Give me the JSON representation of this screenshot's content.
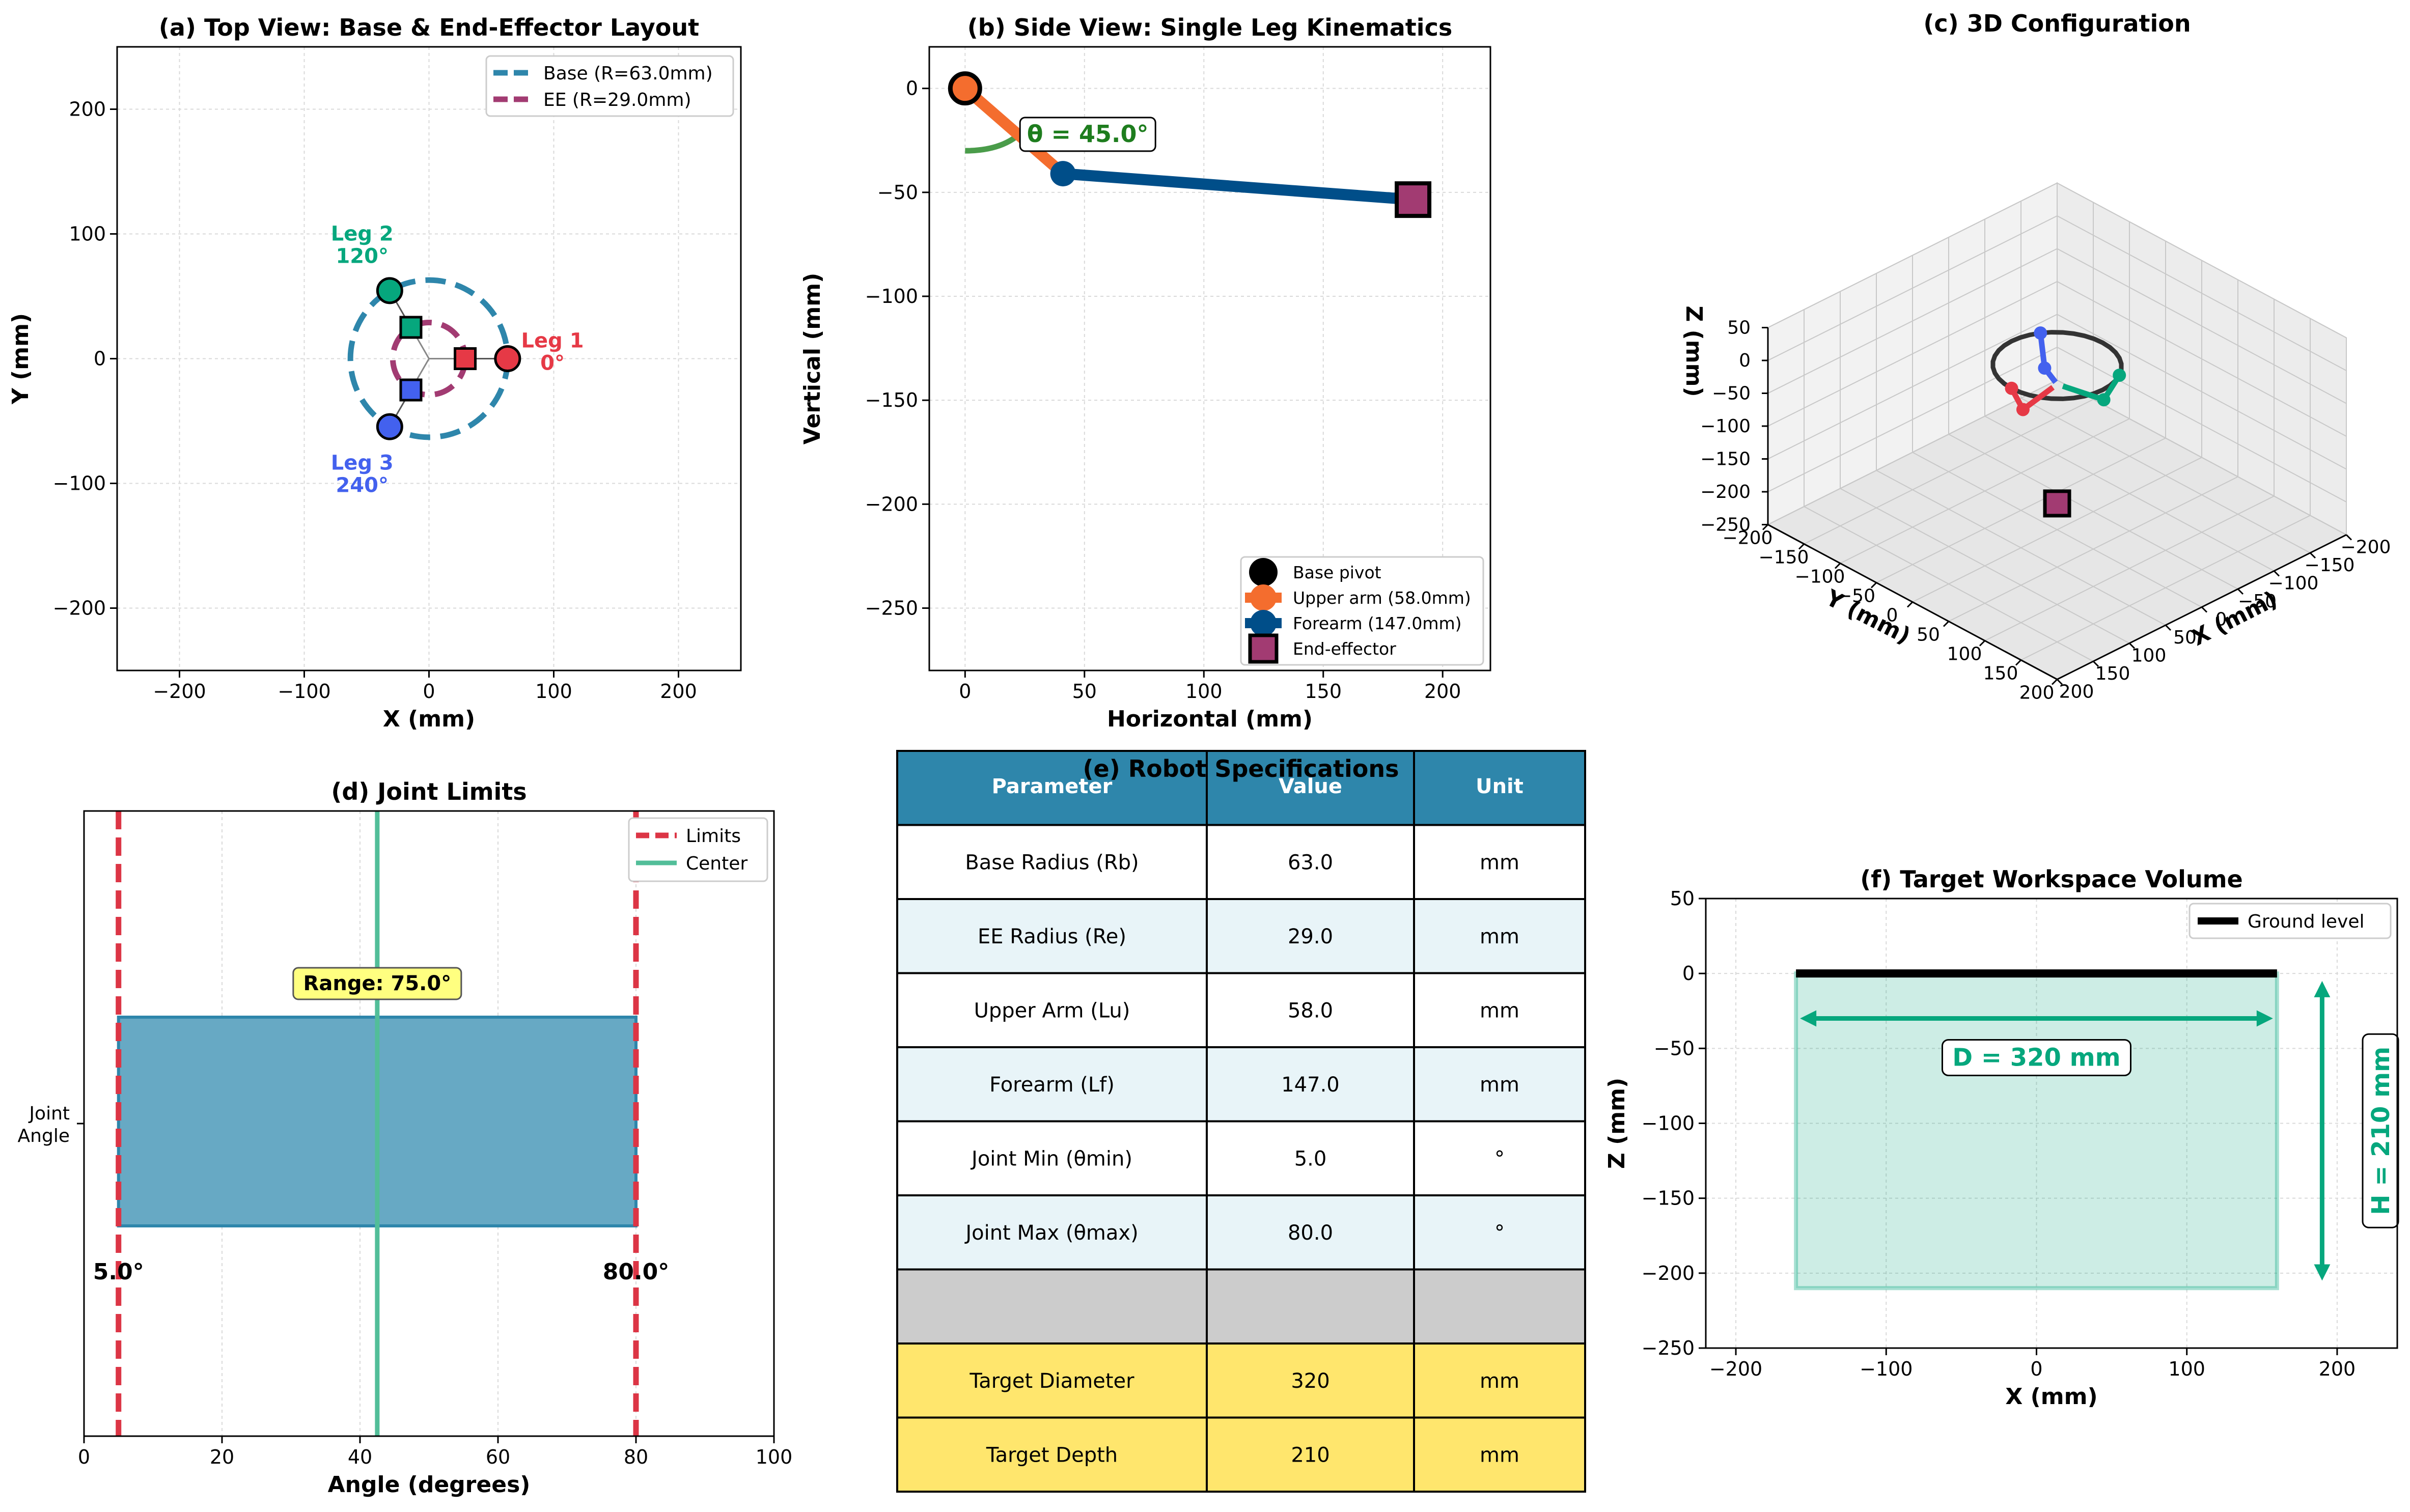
{
  "colors": {
    "base_blue": "#2e86ab",
    "ee_purple": "#a23b72",
    "leg1": "#e63946",
    "leg2": "#06a77d",
    "leg3": "#4361ee",
    "upper_arm": "#f46d2e",
    "forearm": "#004e89",
    "limit_red": "#dc3545",
    "center_green": "#52be99",
    "range_fill": "#67a9c4",
    "target_green": "#06a77d",
    "table_header": "#2e86ab",
    "table_alt": "#e8f4f8",
    "table_gray": "#cccccc",
    "table_yellow": "#ffe66d",
    "label_box": "#ffff80"
  },
  "chart_data": [
    {
      "id": "a",
      "type": "scatter",
      "title": "(a) Top View: Base & End-Effector Layout",
      "xlabel": "X (mm)",
      "ylabel": "Y (mm)",
      "xlim": [
        -250,
        250
      ],
      "ylim": [
        -250,
        250
      ],
      "xticks": [
        -200,
        -100,
        0,
        100,
        200
      ],
      "yticks": [
        -200,
        -100,
        0,
        100,
        200
      ],
      "grid": true,
      "legend": [
        {
          "label": "Base (R=63.0mm)",
          "color": "#2e86ab"
        },
        {
          "label": "EE (R=29.0mm)",
          "color": "#a23b72"
        }
      ],
      "legend_position": "upper right",
      "base_radius": 63.0,
      "ee_radius": 29.0,
      "legs": [
        {
          "label_line1": "Leg 1",
          "label_line2": "0°",
          "angle": 0,
          "color": "#e63946"
        },
        {
          "label_line1": "Leg 2",
          "label_line2": "120°",
          "angle": 120,
          "color": "#06a77d"
        },
        {
          "label_line1": "Leg 3",
          "label_line2": "240°",
          "angle": 240,
          "color": "#4361ee"
        }
      ]
    },
    {
      "id": "b",
      "type": "line",
      "title": "(b) Side View: Single Leg Kinematics",
      "xlabel": "Horizontal (mm)",
      "ylabel": "Vertical (mm)",
      "xlim": [
        -15,
        220
      ],
      "ylim": [
        -280,
        20
      ],
      "xticks": [
        0,
        50,
        100,
        150,
        200
      ],
      "yticks": [
        0,
        -50,
        -100,
        -150,
        -200,
        -250
      ],
      "grid": true,
      "base_pivot": [
        0,
        0
      ],
      "elbow": [
        41.0,
        -41.0
      ],
      "end_effector": [
        187.6,
        -53.5
      ],
      "theta_label": "θ = 45.0°",
      "legend": [
        {
          "label": "Base pivot",
          "color": "#000000"
        },
        {
          "label": "Upper arm (58.0mm)",
          "color": "#f46d2e"
        },
        {
          "label": "Forearm (147.0mm)",
          "color": "#004e89"
        },
        {
          "label": "End-effector",
          "color": "#a23b72"
        }
      ],
      "legend_position": "lower right"
    },
    {
      "id": "c",
      "type": "scatter",
      "title": "(c) 3D Configuration",
      "xlabel": "X (mm)",
      "ylabel": "Y (mm)",
      "zlabel": "Z (mm)",
      "xticks": [
        -200,
        -150,
        -100,
        -50,
        0,
        50,
        100,
        150,
        200
      ],
      "yticks": [
        -200,
        -150,
        -100,
        -50,
        0,
        50,
        100,
        150,
        200
      ],
      "zticks": [
        50,
        0,
        -50,
        -100,
        -150,
        -200,
        -250
      ],
      "xlim": [
        -200,
        200
      ],
      "ylim": [
        -200,
        200
      ],
      "zlim": [
        -250,
        50
      ]
    },
    {
      "id": "d",
      "type": "bar",
      "title": "(d) Joint Limits",
      "xlabel": "Angle (degrees)",
      "ylabel_tick_line1": "Joint",
      "ylabel_tick_line2": "Angle",
      "xlim": [
        0,
        100
      ],
      "xticks": [
        0,
        20,
        40,
        60,
        80,
        100
      ],
      "grid": true,
      "min": 5.0,
      "max": 80.0,
      "center": 42.5,
      "min_label": "5.0°",
      "max_label": "80.0°",
      "range_label": "Range: 75.0°",
      "legend": [
        {
          "label": "Limits",
          "color": "#dc3545"
        },
        {
          "label": "Center",
          "color": "#52be99"
        }
      ],
      "legend_position": "upper right"
    },
    {
      "id": "e",
      "type": "table",
      "title": "(e) Robot Specifications",
      "columns": [
        "Parameter",
        "Value",
        "Unit"
      ],
      "rows": [
        [
          "Base Radius (Rb)",
          "63.0",
          "mm"
        ],
        [
          "EE Radius (Re)",
          "29.0",
          "mm"
        ],
        [
          "Upper Arm (Lu)",
          "58.0",
          "mm"
        ],
        [
          "Forearm (Lf)",
          "147.0",
          "mm"
        ],
        [
          "Joint Min (θmin)",
          "5.0",
          "°"
        ],
        [
          "Joint Max (θmax)",
          "80.0",
          "°"
        ],
        [
          "",
          "",
          ""
        ],
        [
          "Target Diameter",
          "320",
          "mm"
        ],
        [
          "Target Depth",
          "210",
          "mm"
        ]
      ]
    },
    {
      "id": "f",
      "type": "area",
      "title": "(f) Target Workspace Volume",
      "xlabel": "X (mm)",
      "ylabel": "Z (mm)",
      "xlim": [
        -220,
        240
      ],
      "ylim": [
        -250,
        50
      ],
      "xticks": [
        -200,
        -100,
        0,
        100,
        200
      ],
      "yticks": [
        50,
        0,
        -50,
        -100,
        -150,
        -200,
        -250
      ],
      "grid": true,
      "workspace_x": [
        -160,
        160
      ],
      "workspace_z": [
        -210,
        0
      ],
      "ground_label": "Ground level",
      "legend_position": "upper right",
      "diameter_label": "D = 320 mm",
      "height_label": "H = 210 mm"
    }
  ]
}
